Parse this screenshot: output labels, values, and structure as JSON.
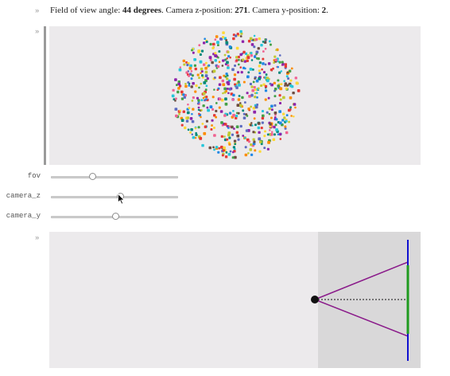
{
  "caption": {
    "fov_prefix": "Field of view angle:",
    "fov_value": "44 degrees",
    "z_prefix": ". Camera z-position:",
    "z_value": "271",
    "y_prefix": ". Camera y-position:",
    "y_value": "2",
    "suffix": "."
  },
  "cell_markers": [
    "»",
    "»",
    "»"
  ],
  "sliders": [
    {
      "label": "fov",
      "value": 0.33
    },
    {
      "label": "camera_z",
      "value": 0.55
    },
    {
      "label": "camera_y",
      "value": 0.51
    }
  ],
  "particles": {
    "colors": [
      "#e53935",
      "#43a047",
      "#1e88e5",
      "#fb8c00",
      "#8e24aa",
      "#fdd835",
      "#00897b",
      "#f06292",
      "#6d4c41",
      "#26c6da",
      "#c0ca33",
      "#5c6bc0"
    ]
  },
  "camera_diagram": {
    "colors": {
      "frustum": "#8a1a8a",
      "near_plane": "#1f9a1f",
      "far_plane": "#1010d0",
      "axis": "#111111",
      "shaded_region": "#d9d8d9"
    }
  }
}
